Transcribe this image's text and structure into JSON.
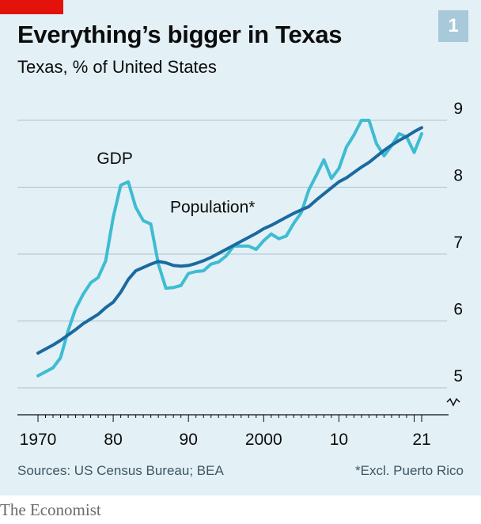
{
  "header": {
    "title": "Everything’s bigger in Texas",
    "subtitle": "Texas, % of United States",
    "chart_number": "1"
  },
  "footer": {
    "sources": "Sources: US Census Bureau; BEA",
    "footnote": "*Excl. Puerto Rico",
    "brand": "The Economist"
  },
  "colors": {
    "gdp": "#3ebcd2",
    "population": "#1a6aa0",
    "background": "#e3f0f6",
    "accent_red": "#e3120b",
    "badge": "#a7c9d9"
  },
  "chart_data": {
    "type": "line",
    "title": "Everything’s bigger in Texas",
    "subtitle": "Texas, % of United States",
    "ylim": [
      5,
      9
    ],
    "y_ticks": [
      "5",
      "6",
      "7",
      "8",
      "9"
    ],
    "xlim": [
      1970,
      2021
    ],
    "x_ticks": [
      {
        "value": 1970,
        "label": "1970"
      },
      {
        "value": 1980,
        "label": "80"
      },
      {
        "value": 1990,
        "label": "90"
      },
      {
        "value": 2000,
        "label": "2000"
      },
      {
        "value": 2010,
        "label": "10"
      },
      {
        "value": 2021,
        "label": "21"
      }
    ],
    "grid": true,
    "axis_break": true,
    "series": [
      {
        "name": "GDP",
        "color": "#3ebcd2",
        "label_at": [
          1980,
          8.35
        ],
        "x": [
          1970,
          1971,
          1972,
          1973,
          1974,
          1975,
          1976,
          1977,
          1978,
          1979,
          1980,
          1981,
          1982,
          1983,
          1984,
          1985,
          1986,
          1987,
          1988,
          1989,
          1990,
          1991,
          1992,
          1993,
          1994,
          1995,
          1996,
          1997,
          1998,
          1999,
          2000,
          2001,
          2002,
          2003,
          2004,
          2005,
          2006,
          2007,
          2008,
          2009,
          2010,
          2011,
          2012,
          2013,
          2014,
          2015,
          2016,
          2017,
          2018,
          2019,
          2020,
          2021
        ],
        "values": [
          5.18,
          5.24,
          5.3,
          5.45,
          5.85,
          6.18,
          6.4,
          6.57,
          6.65,
          6.9,
          7.55,
          8.03,
          8.08,
          7.7,
          7.5,
          7.45,
          6.85,
          6.49,
          6.5,
          6.53,
          6.71,
          6.74,
          6.75,
          6.85,
          6.88,
          6.97,
          7.12,
          7.12,
          7.12,
          7.07,
          7.2,
          7.3,
          7.23,
          7.27,
          7.46,
          7.62,
          7.96,
          8.18,
          8.41,
          8.13,
          8.28,
          8.6,
          8.78,
          9.0,
          9.0,
          8.65,
          8.47,
          8.62,
          8.8,
          8.75,
          8.52,
          8.8
        ]
      },
      {
        "name": "Population*",
        "color": "#1a6aa0",
        "label_at": [
          1993,
          7.62
        ],
        "x": [
          1970,
          1971,
          1972,
          1973,
          1974,
          1975,
          1976,
          1977,
          1978,
          1979,
          1980,
          1981,
          1982,
          1983,
          1984,
          1985,
          1986,
          1987,
          1988,
          1989,
          1990,
          1991,
          1992,
          1993,
          1994,
          1995,
          1996,
          1997,
          1998,
          1999,
          2000,
          2001,
          2002,
          2003,
          2004,
          2005,
          2006,
          2007,
          2008,
          2009,
          2010,
          2011,
          2012,
          2013,
          2014,
          2015,
          2016,
          2017,
          2018,
          2019,
          2020,
          2021
        ],
        "values": [
          5.52,
          5.58,
          5.64,
          5.71,
          5.79,
          5.87,
          5.96,
          6.03,
          6.1,
          6.2,
          6.28,
          6.43,
          6.62,
          6.75,
          6.8,
          6.85,
          6.89,
          6.87,
          6.83,
          6.82,
          6.83,
          6.86,
          6.9,
          6.95,
          7.01,
          7.07,
          7.13,
          7.19,
          7.25,
          7.31,
          7.38,
          7.43,
          7.49,
          7.55,
          7.61,
          7.66,
          7.71,
          7.81,
          7.9,
          7.99,
          8.08,
          8.14,
          8.22,
          8.3,
          8.37,
          8.46,
          8.55,
          8.63,
          8.7,
          8.76,
          8.83,
          8.89
        ]
      }
    ]
  }
}
